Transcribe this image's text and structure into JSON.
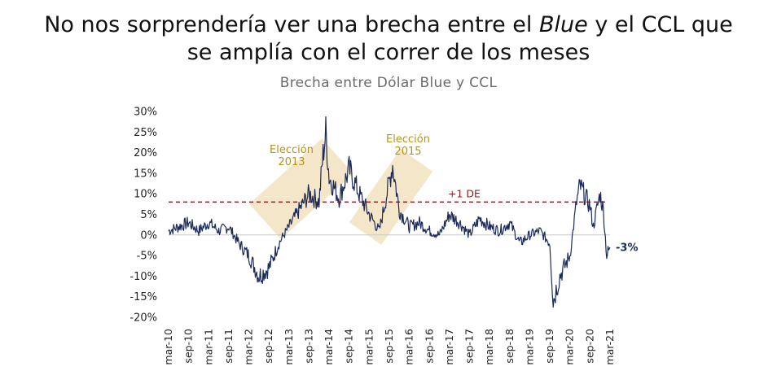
{
  "title": {
    "part1": "No nos sorprendería ver una brecha entre el ",
    "italic": "Blue",
    "part2": " y el CCL que",
    "line2": "se amplía con el correr de los meses"
  },
  "chart_data": {
    "type": "line",
    "title": "Brecha entre Dólar Blue y CCL",
    "xlabel": "",
    "ylabel": "",
    "ylim": [
      -20,
      30
    ],
    "yticks": [
      30,
      25,
      20,
      15,
      10,
      5,
      0,
      -5,
      -10,
      -15,
      -20
    ],
    "ytick_labels": [
      "30%",
      "25%",
      "20%",
      "15%",
      "10%",
      "5%",
      "0%",
      "-5%",
      "-10%",
      "-15%",
      "-20%"
    ],
    "xlim": [
      "2010-03",
      "2021-03"
    ],
    "x_tick_labels": [
      "mar-10",
      "sep-10",
      "mar-11",
      "sep-11",
      "mar-12",
      "sep-12",
      "mar-13",
      "sep-13",
      "mar-14",
      "sep-14",
      "mar-15",
      "sep-15",
      "mar-16",
      "sep-16",
      "mar-17",
      "sep-17",
      "mar-18",
      "sep-18",
      "mar-19",
      "sep-19",
      "mar-20",
      "sep-20",
      "mar-21"
    ],
    "grid": false,
    "color": "#1b2a5a",
    "series": [
      {
        "x": [
          "2010-03",
          "2010-06",
          "2010-09",
          "2010-12",
          "2011-03",
          "2011-06",
          "2011-09",
          "2011-12",
          "2012-03",
          "2012-06",
          "2012-09",
          "2012-12",
          "2013-03",
          "2013-06",
          "2013-09",
          "2013-12",
          "2014-01",
          "2014-02",
          "2014-03",
          "2014-06",
          "2014-09",
          "2014-12",
          "2015-03",
          "2015-06",
          "2015-09",
          "2015-10",
          "2015-12",
          "2016-03",
          "2016-06",
          "2016-09",
          "2016-12",
          "2017-03",
          "2017-06",
          "2017-09",
          "2017-12",
          "2018-03",
          "2018-06",
          "2018-09",
          "2018-12",
          "2019-03",
          "2019-06",
          "2019-09",
          "2019-10",
          "2019-12",
          "2020-03",
          "2020-05",
          "2020-06",
          "2020-09",
          "2020-10",
          "2020-12",
          "2021-01",
          "2021-02",
          "2021-03"
        ],
        "values": [
          1,
          2,
          3,
          1,
          3,
          1,
          2,
          -2,
          -5,
          -10,
          -8,
          -2,
          2,
          6,
          10,
          8,
          18,
          25,
          14,
          9,
          16,
          10,
          5,
          1,
          13,
          17,
          6,
          2,
          3,
          1,
          0,
          5,
          3,
          0,
          4,
          2,
          1,
          3,
          -2,
          0,
          1,
          -2,
          -16,
          -10,
          -5,
          8,
          12,
          7,
          2,
          10,
          6,
          -5,
          -3
        ]
      }
    ],
    "reference_line": {
      "value": 8,
      "label": "+1 DE",
      "color": "#8b1a1a",
      "style": "dashed"
    },
    "annotations": [
      {
        "line1": "Elección",
        "line2": "2013"
      },
      {
        "line1": "Elección",
        "line2": "2015"
      }
    ],
    "end_label": "-3%",
    "highlight_color": "#f2e2bf",
    "annotation_color": "#b59419"
  }
}
